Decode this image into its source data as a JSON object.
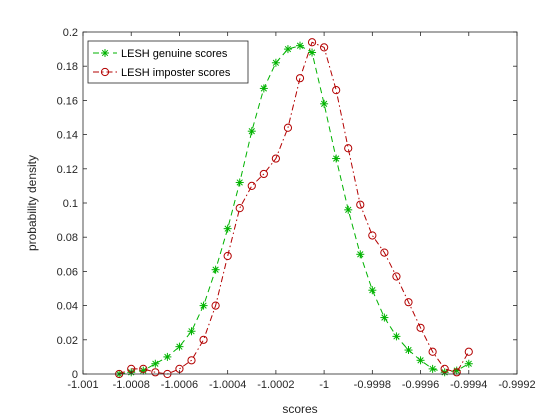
{
  "chart_data": {
    "type": "line",
    "title": "",
    "xlabel": "scores",
    "ylabel": "probability density",
    "xlim": [
      -1.001,
      -0.9992
    ],
    "ylim": [
      0,
      0.2
    ],
    "xticks": [
      -1.001,
      -1.0008,
      -1.0006,
      -1.0004,
      -1.0002,
      -1,
      -0.9998,
      -0.9996,
      -0.9994,
      -0.9992
    ],
    "xtick_labels": [
      "-1.001",
      "-1.0008",
      "-1.0006",
      "-1.0004",
      "-1.0002",
      "-1",
      "-0.9998",
      "-0.9996",
      "-0.9994",
      "-0.9992"
    ],
    "yticks": [
      0,
      0.02,
      0.04,
      0.06,
      0.08,
      0.1,
      0.12,
      0.14,
      0.16,
      0.18,
      0.2
    ],
    "ytick_labels": [
      "0",
      "0.02",
      "0.04",
      "0.06",
      "0.08",
      "0.1",
      "0.12",
      "0.14",
      "0.16",
      "0.18",
      "0.2"
    ],
    "grid": false,
    "legend_position": "top-left",
    "series": [
      {
        "name": "LESH genuine scores",
        "color": "#00b300",
        "marker": "asterisk",
        "line_style": "dashed",
        "x": [
          -1.00085,
          -1.0008,
          -1.00075,
          -1.0007,
          -1.00065,
          -1.0006,
          -1.00055,
          -1.0005,
          -1.00045,
          -1.0004,
          -1.00035,
          -1.0003,
          -1.00025,
          -1.0002,
          -1.00015,
          -1.0001,
          -1.00005,
          -1.0,
          -0.99995,
          -0.9999,
          -0.99985,
          -0.9998,
          -0.99975,
          -0.9997,
          -0.99965,
          -0.9996,
          -0.99955,
          -0.9995,
          -0.99945,
          -0.9994
        ],
        "y": [
          0.0,
          0.001,
          0.002,
          0.006,
          0.01,
          0.016,
          0.025,
          0.04,
          0.061,
          0.085,
          0.112,
          0.142,
          0.167,
          0.182,
          0.19,
          0.192,
          0.188,
          0.158,
          0.126,
          0.096,
          0.07,
          0.049,
          0.033,
          0.022,
          0.014,
          0.008,
          0.003,
          0.001,
          0.002,
          0.006
        ]
      },
      {
        "name": "LESH imposter scores",
        "color": "#b30000",
        "marker": "circle",
        "line_style": "dash-dot",
        "x": [
          -1.00085,
          -1.0008,
          -1.00075,
          -1.0007,
          -1.00065,
          -1.0006,
          -1.00055,
          -1.0005,
          -1.00045,
          -1.0004,
          -1.00035,
          -1.0003,
          -1.00025,
          -1.0002,
          -1.00015,
          -1.0001,
          -1.00005,
          -1.0,
          -0.99995,
          -0.9999,
          -0.99985,
          -0.9998,
          -0.99975,
          -0.9997,
          -0.99965,
          -0.9996,
          -0.99955,
          -0.9995,
          -0.99945,
          -0.9994
        ],
        "y": [
          0.0,
          0.003,
          0.003,
          0.001,
          0.0,
          0.003,
          0.008,
          0.02,
          0.04,
          0.069,
          0.097,
          0.11,
          0.117,
          0.126,
          0.144,
          0.173,
          0.194,
          0.191,
          0.166,
          0.132,
          0.099,
          0.081,
          0.071,
          0.057,
          0.042,
          0.027,
          0.013,
          0.003,
          0.001,
          0.013
        ]
      }
    ]
  }
}
